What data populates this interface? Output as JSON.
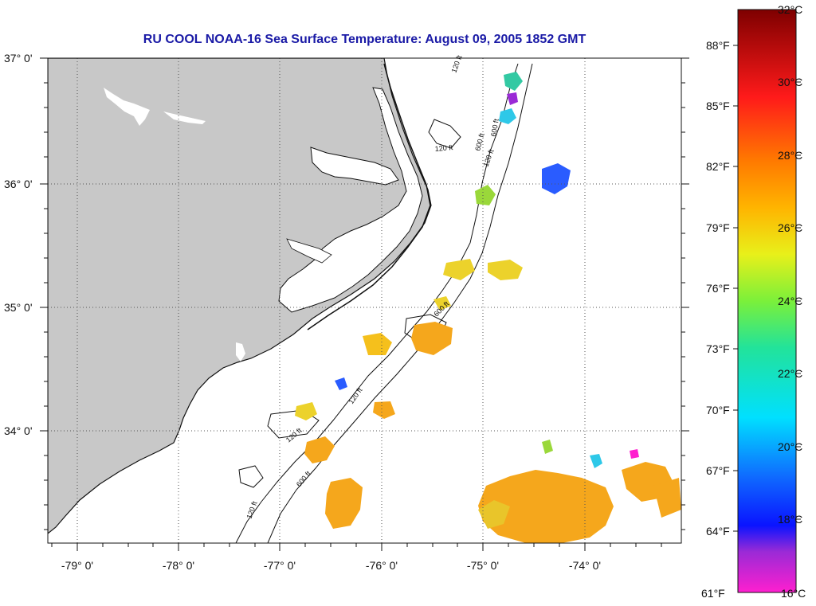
{
  "title": "RU COOL  NOAA-16  Sea Surface Temperature:  August 09, 2005 1852 GMT",
  "map": {
    "lat_labels": [
      "37° 0'",
      "36° 0'",
      "35° 0'",
      "34° 0'"
    ],
    "lon_labels": [
      "-79° 0'",
      "-78° 0'",
      "-77° 0'",
      "-76° 0'",
      "-75° 0'",
      "-74° 0'"
    ],
    "contour_labels": [
      "120 ft",
      "600 ft",
      "120 ft",
      "120 ft",
      "600 ft",
      "120 ft",
      "600 ft",
      "120 ft",
      "600 ft",
      "120 ft"
    ],
    "colors": {
      "land": "#c8c8c8",
      "grid": "#555555",
      "title": "#1a1aa6"
    }
  },
  "colorbar": {
    "celsius_labels": [
      "32°C",
      "30°C",
      "28°C",
      "26°C",
      "24°C",
      "22°C",
      "20°C",
      "18°C",
      "16°C"
    ],
    "fahrenheit_labels": [
      "88°F",
      "85°F",
      "82°F",
      "79°F",
      "76°F",
      "73°F",
      "70°F",
      "67°F",
      "64°F",
      "61°F"
    ],
    "range_celsius": [
      16,
      32
    ]
  }
}
